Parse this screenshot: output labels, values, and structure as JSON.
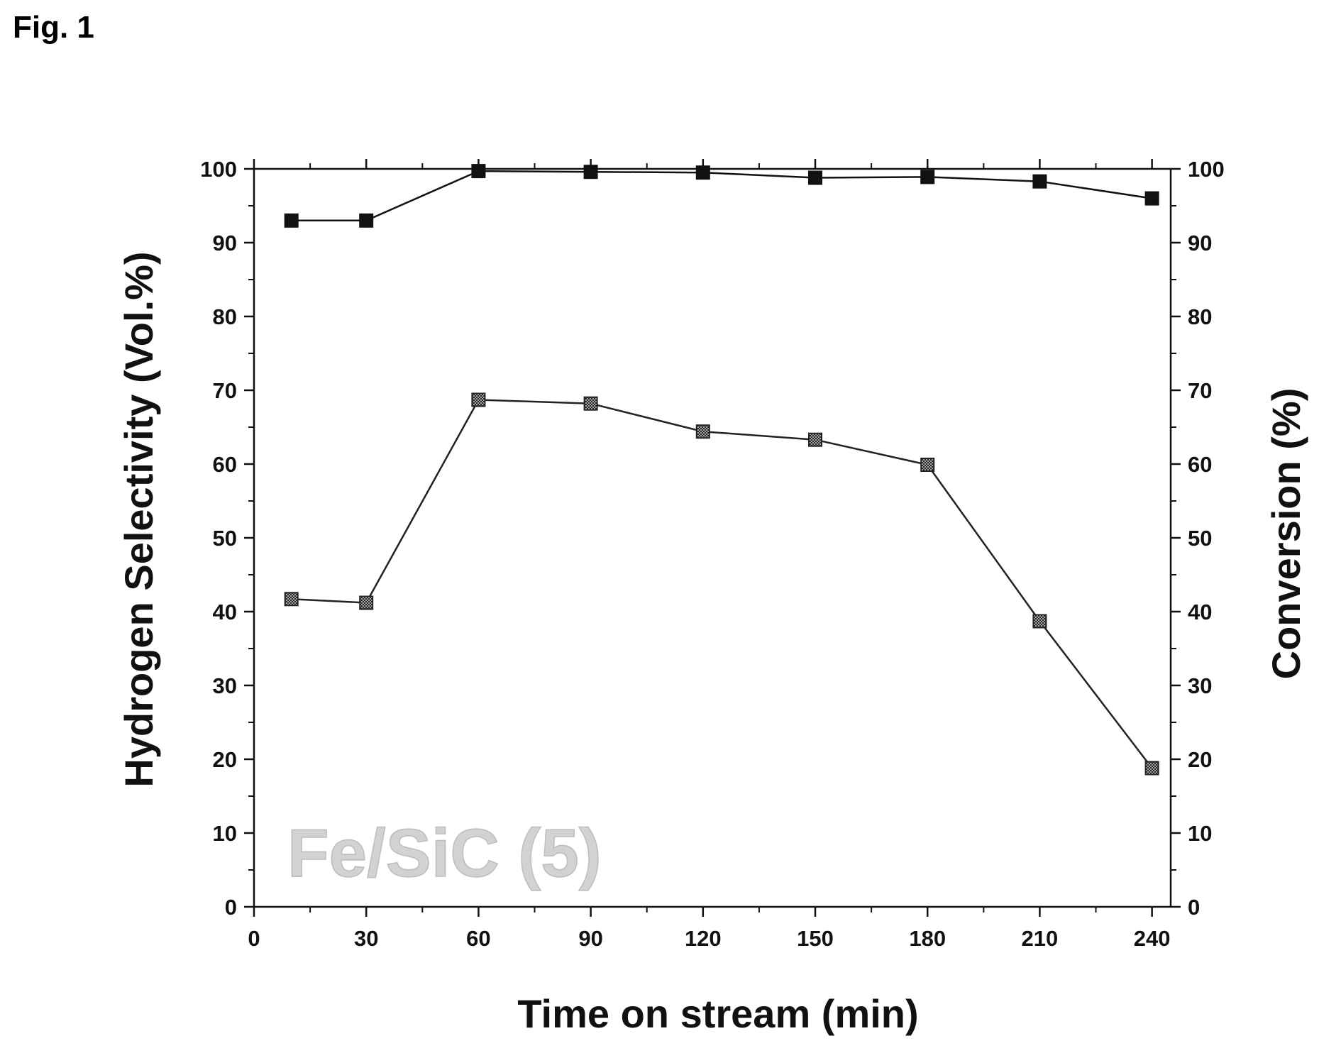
{
  "figure": {
    "label": "Fig. 1"
  },
  "chart_data": {
    "type": "line",
    "xlabel": "Time on stream (min)",
    "ylabel_left": "Hydrogen Selectivity (Vol.%)",
    "ylabel_right": "Conversion (%)",
    "annotation": "Fe/SiC (5)",
    "x_ticks": [
      0,
      30,
      60,
      90,
      120,
      150,
      180,
      210,
      240
    ],
    "y_ticks": [
      0,
      10,
      20,
      30,
      40,
      50,
      60,
      70,
      80,
      90,
      100
    ],
    "xlim": [
      0,
      245
    ],
    "ylim_left": [
      0,
      100
    ],
    "ylim_right": [
      0,
      100
    ],
    "x": [
      10,
      30,
      60,
      90,
      120,
      150,
      180,
      210,
      240
    ],
    "series": [
      {
        "axis": "left",
        "values": [
          93,
          93,
          99.7,
          99.6,
          99.5,
          98.8,
          98.9,
          98.3,
          96
        ],
        "color": "#111111",
        "marker": "square-filled"
      },
      {
        "axis": "right",
        "values": [
          41.7,
          41.2,
          68.7,
          68.2,
          64.4,
          63.3,
          59.9,
          38.7,
          18.8
        ],
        "color": "#222222",
        "marker": "square-hatched"
      }
    ],
    "grid": false,
    "legend": "none"
  }
}
